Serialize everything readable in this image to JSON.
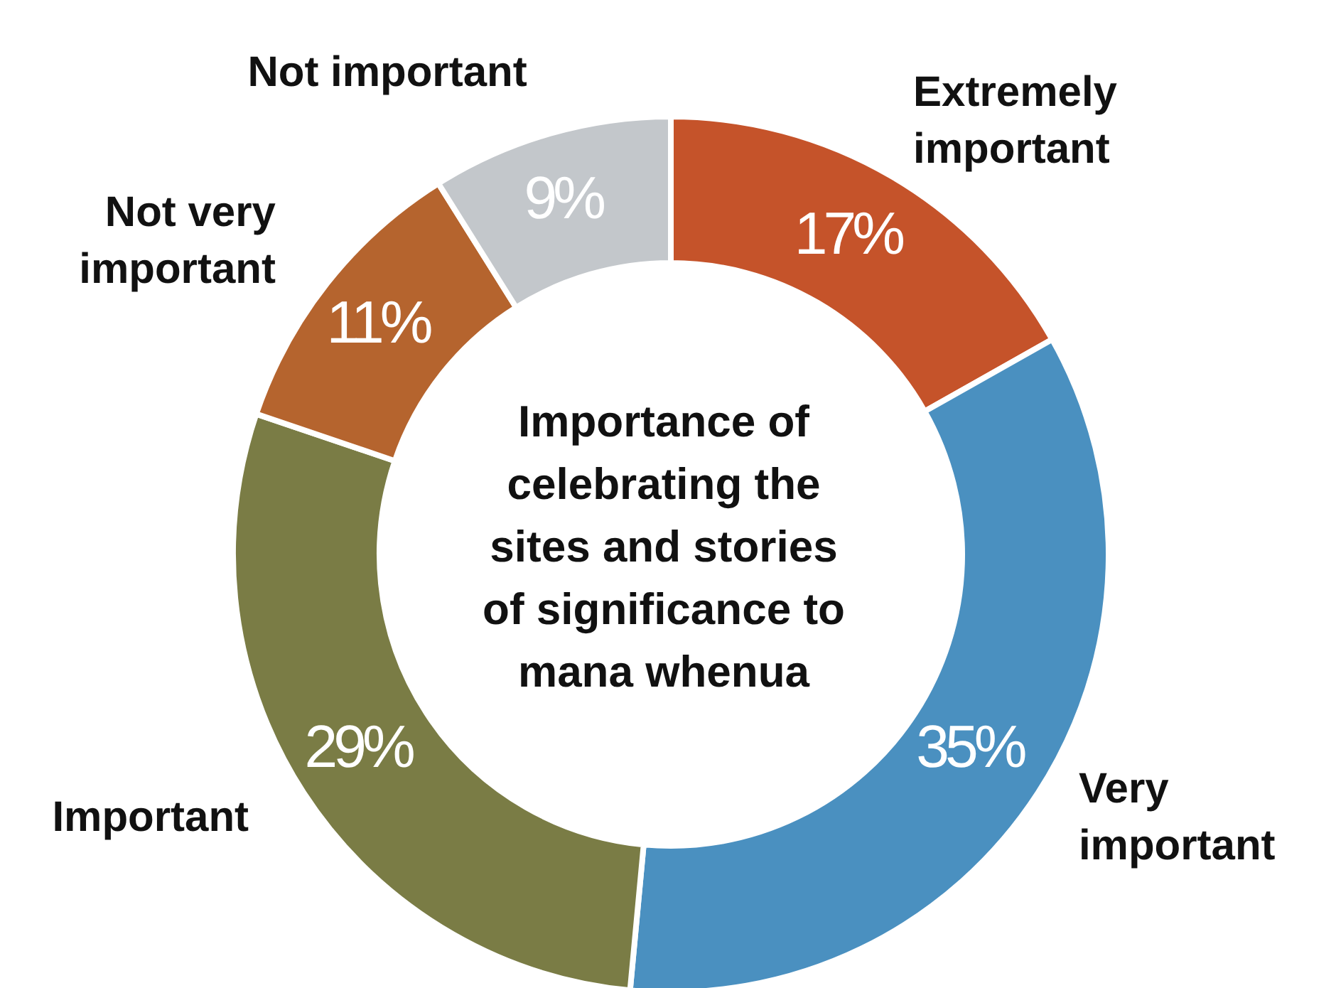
{
  "chart_data": {
    "type": "donut",
    "title": "Importance of celebrating the sites and stories of significance to mana whenua",
    "categories": [
      "Extremely important",
      "Very important",
      "Important",
      "Not very important",
      "Not important"
    ],
    "values": [
      17,
      35,
      29,
      11,
      9
    ],
    "value_labels": [
      "17%",
      "35%",
      "29%",
      "11%",
      "9%"
    ],
    "colors": [
      "#c5532a",
      "#4a90c0",
      "#7a7c45",
      "#b5642e",
      "#c3c7cb"
    ]
  }
}
